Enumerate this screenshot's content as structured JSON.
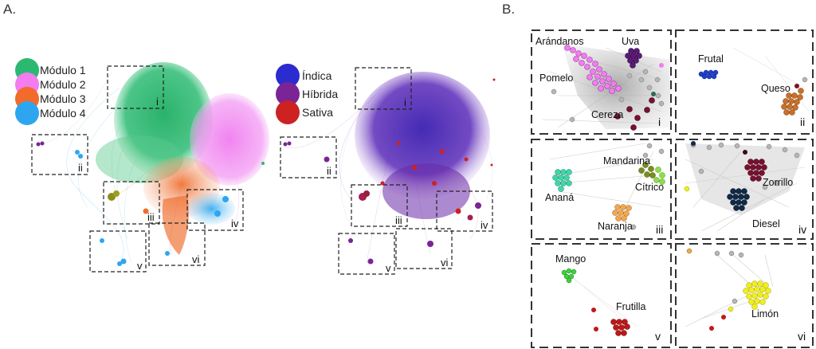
{
  "panels": {
    "a": {
      "letter": "A."
    },
    "b": {
      "letter": "B."
    }
  },
  "legend_modules": [
    {
      "label": "Módulo 1",
      "color": "#2db872"
    },
    {
      "label": "Módulo 2",
      "color": "#f27cf0"
    },
    {
      "label": "Módulo 3",
      "color": "#f26b2a"
    },
    {
      "label": "Módulo 4",
      "color": "#2ea6ef"
    }
  ],
  "legend_types": [
    {
      "label": "Índica",
      "color": "#2b2bd0"
    },
    {
      "label": "Híbrida",
      "color": "#7a2496"
    },
    {
      "label": "Sativa",
      "color": "#cc2222"
    }
  ],
  "network_regions": [
    "i",
    "ii",
    "iii",
    "iv",
    "v",
    "vi"
  ],
  "zoom_panels": [
    {
      "roman": "i",
      "clusters": [
        {
          "name": "Arándanos",
          "color": "#f27cf0"
        },
        {
          "name": "Uva",
          "color": "#5b1a78"
        },
        {
          "name": "Pomelo",
          "color": "#f5b8e0"
        },
        {
          "name": "Cereza",
          "color": "#7a1030"
        }
      ]
    },
    {
      "roman": "ii",
      "clusters": [
        {
          "name": "Frutal",
          "color": "#1f3fd0"
        },
        {
          "name": "Queso",
          "color": "#c8702a"
        }
      ]
    },
    {
      "roman": "iii",
      "clusters": [
        {
          "name": "Mandarina",
          "color": "#7a8f1a"
        },
        {
          "name": "Cítrico",
          "color": "#8be04a"
        },
        {
          "name": "Ananá",
          "color": "#3fd6a8"
        },
        {
          "name": "Naranja",
          "color": "#f0a850"
        }
      ]
    },
    {
      "roman": "iv",
      "clusters": [
        {
          "name": "Zorrillo",
          "color": "#7a1030"
        },
        {
          "name": "Diesel",
          "color": "#0f2a4a"
        }
      ]
    },
    {
      "roman": "v",
      "clusters": [
        {
          "name": "Mango",
          "color": "#3fd03f"
        },
        {
          "name": "Frutilla",
          "color": "#c01818"
        }
      ]
    },
    {
      "roman": "vi",
      "clusters": [
        {
          "name": "Limón",
          "color": "#f2ee1a"
        }
      ]
    }
  ]
}
